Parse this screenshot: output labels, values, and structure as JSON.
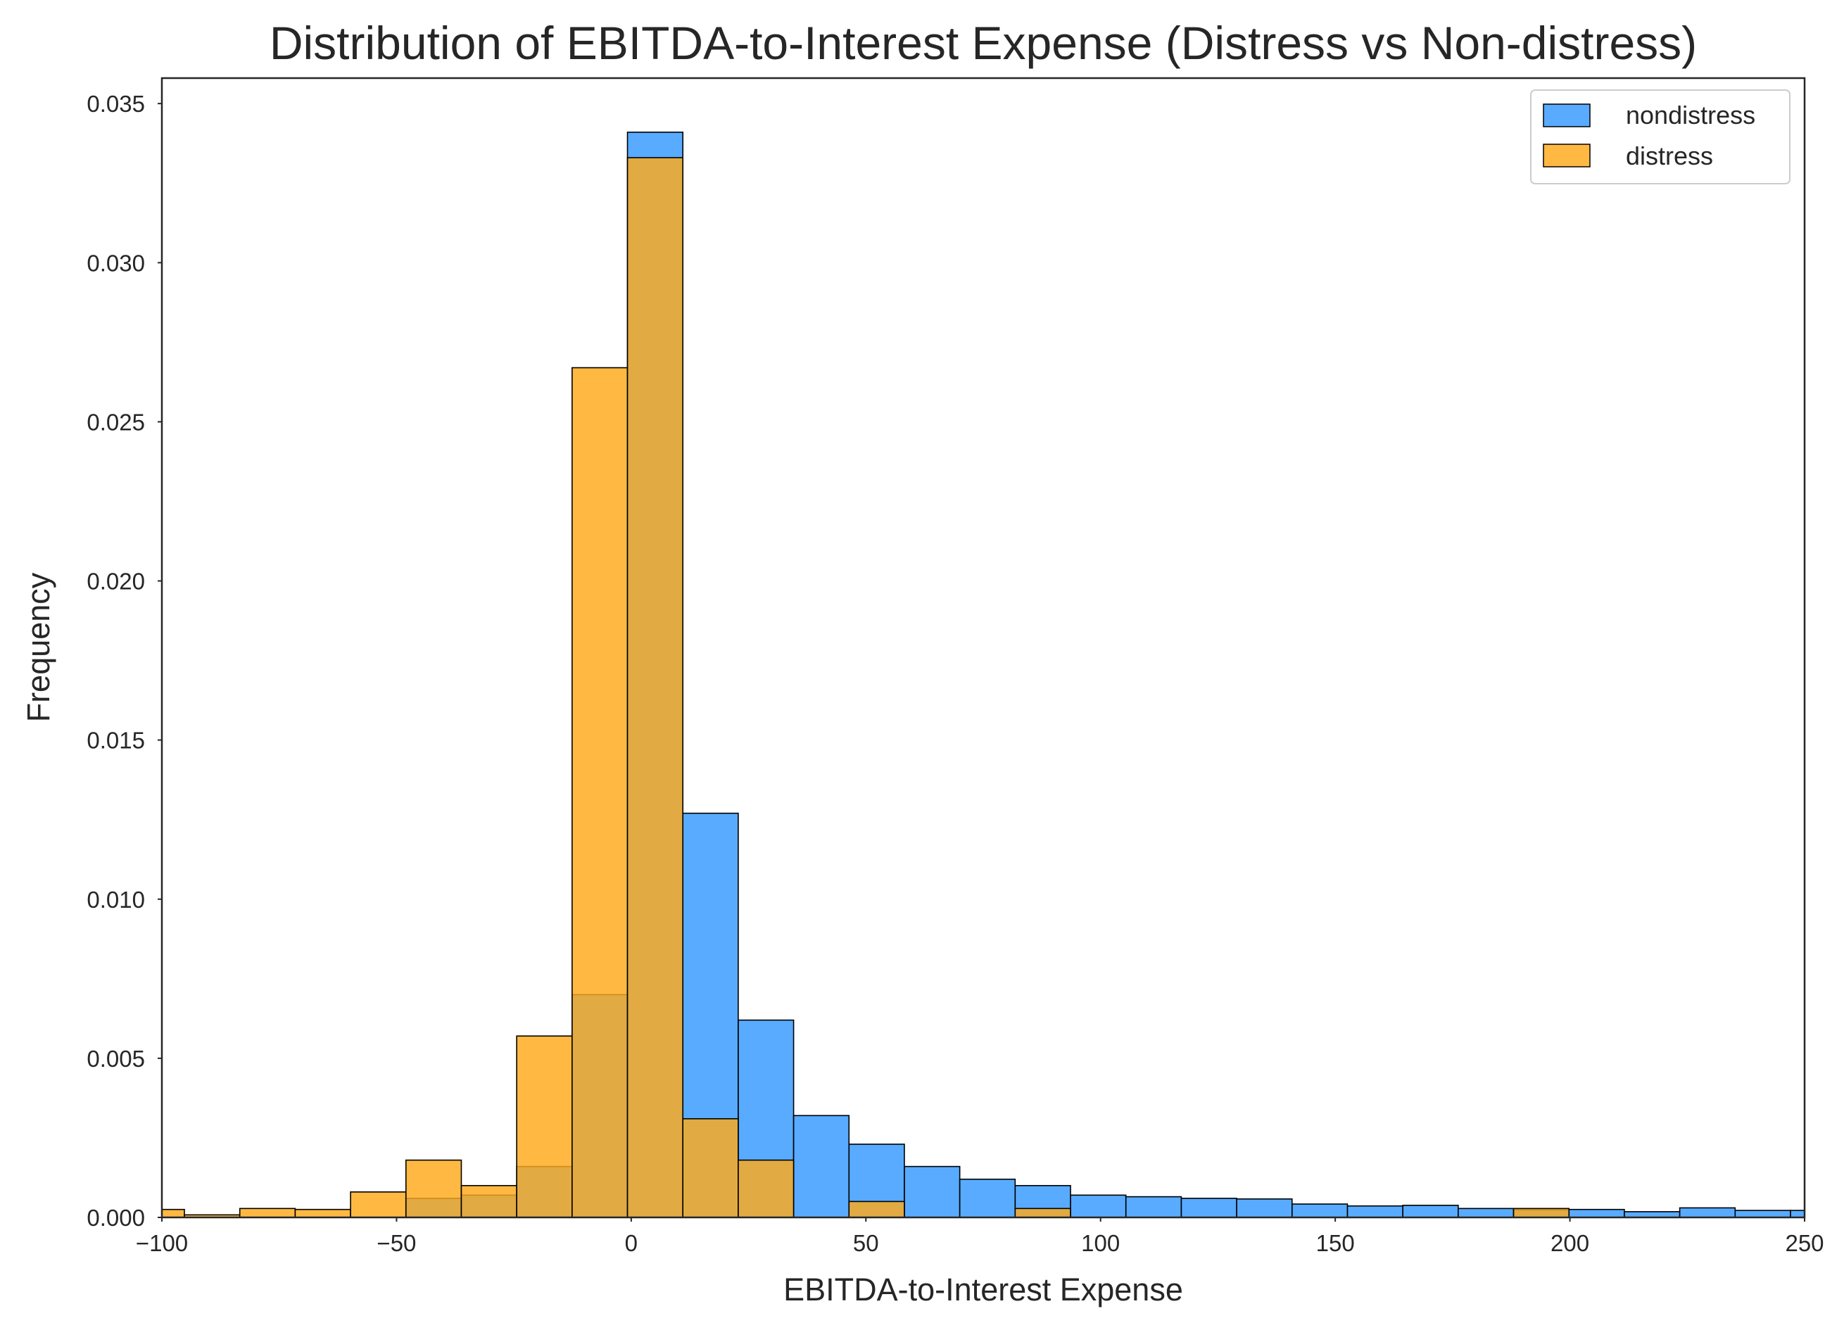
{
  "chart_data": {
    "type": "bar",
    "title": "Distribution of EBITDA-to-Interest Expense (Distress vs Non-distress)",
    "xlabel": "EBITDA-to-Interest Expense",
    "ylabel": "Frequency",
    "xlim": [
      -100,
      250
    ],
    "ylim": [
      0,
      0.0358
    ],
    "x_ticks": [
      -100,
      -50,
      0,
      50,
      100,
      150,
      200,
      250
    ],
    "x_tick_labels": [
      "−100",
      "−50",
      "0",
      "50",
      "100",
      "150",
      "200",
      "250"
    ],
    "y_ticks": [
      0,
      0.005,
      0.01,
      0.015,
      0.02,
      0.025,
      0.03,
      0.035
    ],
    "y_tick_labels": [
      "0.000",
      "0.005",
      "0.010",
      "0.015",
      "0.020",
      "0.025",
      "0.030",
      "0.035"
    ],
    "grid": false,
    "legend_position": "top-right",
    "series": [
      {
        "name": "nondistress",
        "color": "#3399ff",
        "bins": [
          {
            "x0": -48.0,
            "x1": -36.2,
            "value": 0.0006
          },
          {
            "x0": -36.2,
            "x1": -24.4,
            "value": 0.0007
          },
          {
            "x0": -24.4,
            "x1": -12.6,
            "value": 0.0016
          },
          {
            "x0": -12.6,
            "x1": -0.8,
            "value": 0.007
          },
          {
            "x0": -0.8,
            "x1": 11.0,
            "value": 0.0341
          },
          {
            "x0": 11.0,
            "x1": 22.8,
            "value": 0.0127
          },
          {
            "x0": 22.8,
            "x1": 34.6,
            "value": 0.0062
          },
          {
            "x0": 34.6,
            "x1": 46.4,
            "value": 0.0032
          },
          {
            "x0": 46.4,
            "x1": 58.2,
            "value": 0.0023
          },
          {
            "x0": 58.2,
            "x1": 70.0,
            "value": 0.0016
          },
          {
            "x0": 70.0,
            "x1": 81.8,
            "value": 0.0012
          },
          {
            "x0": 81.8,
            "x1": 93.6,
            "value": 0.001
          },
          {
            "x0": 93.6,
            "x1": 105.4,
            "value": 0.0007
          },
          {
            "x0": 105.4,
            "x1": 117.2,
            "value": 0.00065
          },
          {
            "x0": 117.2,
            "x1": 129.0,
            "value": 0.0006
          },
          {
            "x0": 129.0,
            "x1": 140.8,
            "value": 0.00058
          },
          {
            "x0": 140.8,
            "x1": 152.6,
            "value": 0.00042
          },
          {
            "x0": 152.6,
            "x1": 164.4,
            "value": 0.00036
          },
          {
            "x0": 164.4,
            "x1": 176.2,
            "value": 0.00038
          },
          {
            "x0": 176.2,
            "x1": 188.0,
            "value": 0.00028
          },
          {
            "x0": 188.0,
            "x1": 199.8,
            "value": 0.00024
          },
          {
            "x0": 199.8,
            "x1": 211.6,
            "value": 0.00025
          },
          {
            "x0": 211.6,
            "x1": 223.4,
            "value": 0.00018
          },
          {
            "x0": 223.4,
            "x1": 235.2,
            "value": 0.0003
          },
          {
            "x0": 235.2,
            "x1": 247.0,
            "value": 0.00022
          },
          {
            "x0": 247.0,
            "x1": 258.8,
            "value": 0.00022
          }
        ]
      },
      {
        "name": "distress",
        "color": "#ffaa1a",
        "bins": [
          {
            "x0": -107.0,
            "x1": -95.2,
            "value": 0.00025
          },
          {
            "x0": -95.2,
            "x1": -83.4,
            "value": 8e-05
          },
          {
            "x0": -83.4,
            "x1": -71.6,
            "value": 0.00028
          },
          {
            "x0": -71.6,
            "x1": -59.8,
            "value": 0.00025
          },
          {
            "x0": -59.8,
            "x1": -48.0,
            "value": 0.0008
          },
          {
            "x0": -48.0,
            "x1": -36.2,
            "value": 0.0018
          },
          {
            "x0": -36.2,
            "x1": -24.4,
            "value": 0.001
          },
          {
            "x0": -24.4,
            "x1": -12.6,
            "value": 0.0057
          },
          {
            "x0": -12.6,
            "x1": -0.8,
            "value": 0.0267
          },
          {
            "x0": -0.8,
            "x1": 11.0,
            "value": 0.0333
          },
          {
            "x0": 11.0,
            "x1": 22.8,
            "value": 0.0031
          },
          {
            "x0": 22.8,
            "x1": 34.6,
            "value": 0.0018
          },
          {
            "x0": 46.4,
            "x1": 58.2,
            "value": 0.0005
          },
          {
            "x0": 81.8,
            "x1": 93.6,
            "value": 0.00028
          },
          {
            "x0": 188.0,
            "x1": 199.8,
            "value": 0.00028
          }
        ]
      }
    ]
  }
}
